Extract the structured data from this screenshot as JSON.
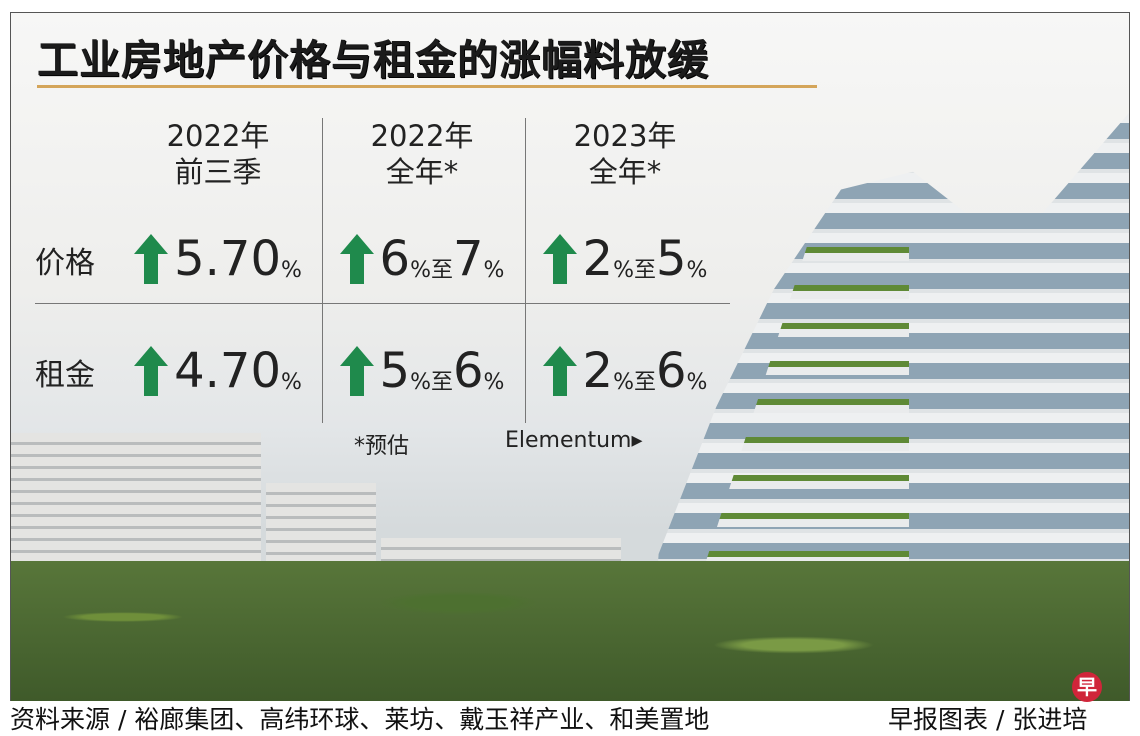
{
  "title": "工业房地产价格与租金的涨幅料放缓",
  "colors": {
    "accent_rule": "#d4a55a",
    "arrow": "#1f8a4c",
    "logo": "#d0253a"
  },
  "chart_data": {
    "type": "table",
    "title": "工业房地产价格与租金的涨幅料放缓",
    "columns": [
      {
        "line1": "2022年",
        "line2": "前三季"
      },
      {
        "line1": "2022年",
        "line2": "全年*"
      },
      {
        "line1": "2023年",
        "line2": "全年*"
      }
    ],
    "rows": [
      {
        "label": "价格",
        "cells": [
          {
            "direction": "up",
            "a": "5.70",
            "unit": "%",
            "sep": "",
            "b": "",
            "unit2": ""
          },
          {
            "direction": "up",
            "a": "6",
            "unit": "%",
            "sep": "至",
            "b": "7",
            "unit2": "%"
          },
          {
            "direction": "up",
            "a": "2",
            "unit": "%",
            "sep": "至",
            "b": "5",
            "unit2": "%"
          }
        ]
      },
      {
        "label": "租金",
        "cells": [
          {
            "direction": "up",
            "a": "4.70",
            "unit": "%",
            "sep": "",
            "b": "",
            "unit2": ""
          },
          {
            "direction": "up",
            "a": "5",
            "unit": "%",
            "sep": "至",
            "b": "6",
            "unit2": "%"
          },
          {
            "direction": "up",
            "a": "2",
            "unit": "%",
            "sep": "至",
            "b": "6",
            "unit2": "%"
          }
        ]
      }
    ],
    "footnote": "*预估"
  },
  "photo_caption": "Elementum▸",
  "footer": {
    "source": "资料来源 / 裕廊集团、高纬环球、莱坊、戴玉祥产业、和美置地",
    "credit": "早报图表 / 张进培"
  },
  "logo_text": "早"
}
